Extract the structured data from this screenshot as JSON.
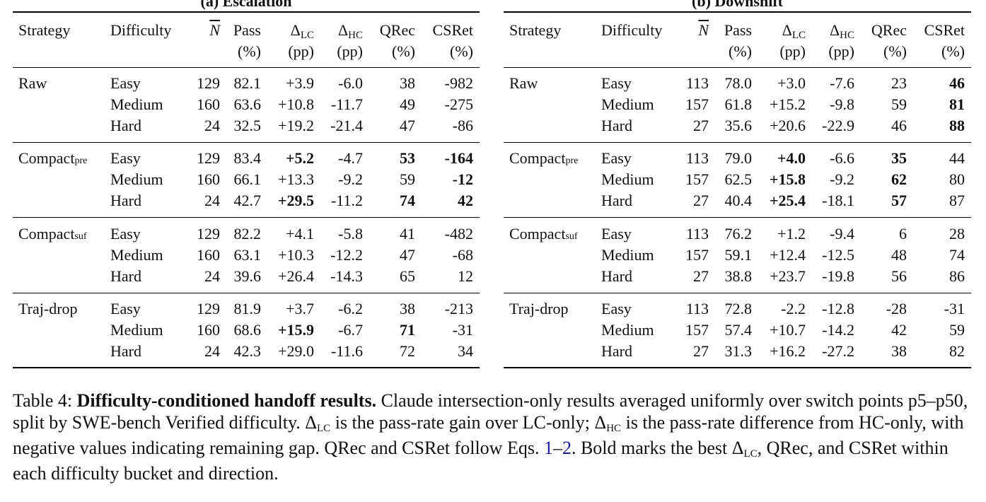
{
  "panels": [
    {
      "title": "(a) Escalation",
      "headers": {
        "strategy": "Strategy",
        "difficulty": "Difficulty",
        "n": "N",
        "pass": [
          "Pass",
          "(%)"
        ],
        "dlc": [
          "Δ",
          "LC",
          "(pp)"
        ],
        "dhc": [
          "Δ",
          "HC",
          "(pp)"
        ],
        "qrec": [
          "QRec",
          "(%)"
        ],
        "csret": [
          "CSRet",
          "(%)"
        ]
      },
      "groups": [
        {
          "strategy": "Raw",
          "sub": "",
          "rows": [
            {
              "d": "Easy",
              "n": "129",
              "pass": "82.1",
              "dlc": "+3.9",
              "dhc": "-6.0",
              "qrec": "38",
              "csret": "-982",
              "bold": []
            },
            {
              "d": "Medium",
              "n": "160",
              "pass": "63.6",
              "dlc": "+10.8",
              "dhc": "-11.7",
              "qrec": "49",
              "csret": "-275",
              "bold": []
            },
            {
              "d": "Hard",
              "n": "24",
              "pass": "32.5",
              "dlc": "+19.2",
              "dhc": "-21.4",
              "qrec": "47",
              "csret": "-86",
              "bold": []
            }
          ]
        },
        {
          "strategy": "Compact",
          "sub": "pre",
          "rows": [
            {
              "d": "Easy",
              "n": "129",
              "pass": "83.4",
              "dlc": "+5.2",
              "dhc": "-4.7",
              "qrec": "53",
              "csret": "-164",
              "bold": [
                "dlc",
                "qrec",
                "csret"
              ]
            },
            {
              "d": "Medium",
              "n": "160",
              "pass": "66.1",
              "dlc": "+13.3",
              "dhc": "-9.2",
              "qrec": "59",
              "csret": "-12",
              "bold": [
                "csret"
              ]
            },
            {
              "d": "Hard",
              "n": "24",
              "pass": "42.7",
              "dlc": "+29.5",
              "dhc": "-11.2",
              "qrec": "74",
              "csret": "42",
              "bold": [
                "dlc",
                "qrec",
                "csret"
              ]
            }
          ]
        },
        {
          "strategy": "Compact",
          "sub": "suf",
          "rows": [
            {
              "d": "Easy",
              "n": "129",
              "pass": "82.2",
              "dlc": "+4.1",
              "dhc": "-5.8",
              "qrec": "41",
              "csret": "-482",
              "bold": []
            },
            {
              "d": "Medium",
              "n": "160",
              "pass": "63.1",
              "dlc": "+10.3",
              "dhc": "-12.2",
              "qrec": "47",
              "csret": "-68",
              "bold": []
            },
            {
              "d": "Hard",
              "n": "24",
              "pass": "39.6",
              "dlc": "+26.4",
              "dhc": "-14.3",
              "qrec": "65",
              "csret": "12",
              "bold": []
            }
          ]
        },
        {
          "strategy": "Traj-drop",
          "sub": "",
          "rows": [
            {
              "d": "Easy",
              "n": "129",
              "pass": "81.9",
              "dlc": "+3.7",
              "dhc": "-6.2",
              "qrec": "38",
              "csret": "-213",
              "bold": []
            },
            {
              "d": "Medium",
              "n": "160",
              "pass": "68.6",
              "dlc": "+15.9",
              "dhc": "-6.7",
              "qrec": "71",
              "csret": "-31",
              "bold": [
                "dlc",
                "qrec"
              ]
            },
            {
              "d": "Hard",
              "n": "24",
              "pass": "42.3",
              "dlc": "+29.0",
              "dhc": "-11.6",
              "qrec": "72",
              "csret": "34",
              "bold": []
            }
          ]
        }
      ]
    },
    {
      "title": "(b) Downshift",
      "headers": {
        "strategy": "Strategy",
        "difficulty": "Difficulty",
        "n": "N",
        "pass": [
          "Pass",
          "(%)"
        ],
        "dlc": [
          "Δ",
          "LC",
          "(pp)"
        ],
        "dhc": [
          "Δ",
          "HC",
          "(pp)"
        ],
        "qrec": [
          "QRec",
          "(%)"
        ],
        "csret": [
          "CSRet",
          "(%)"
        ]
      },
      "groups": [
        {
          "strategy": "Raw",
          "sub": "",
          "rows": [
            {
              "d": "Easy",
              "n": "113",
              "pass": "78.0",
              "dlc": "+3.0",
              "dhc": "-7.6",
              "qrec": "23",
              "csret": "46",
              "bold": [
                "csret"
              ]
            },
            {
              "d": "Medium",
              "n": "157",
              "pass": "61.8",
              "dlc": "+15.2",
              "dhc": "-9.8",
              "qrec": "59",
              "csret": "81",
              "bold": [
                "csret"
              ]
            },
            {
              "d": "Hard",
              "n": "27",
              "pass": "35.6",
              "dlc": "+20.6",
              "dhc": "-22.9",
              "qrec": "46",
              "csret": "88",
              "bold": [
                "csret"
              ]
            }
          ]
        },
        {
          "strategy": "Compact",
          "sub": "pre",
          "rows": [
            {
              "d": "Easy",
              "n": "113",
              "pass": "79.0",
              "dlc": "+4.0",
              "dhc": "-6.6",
              "qrec": "35",
              "csret": "44",
              "bold": [
                "dlc",
                "qrec"
              ]
            },
            {
              "d": "Medium",
              "n": "157",
              "pass": "62.5",
              "dlc": "+15.8",
              "dhc": "-9.2",
              "qrec": "62",
              "csret": "80",
              "bold": [
                "dlc",
                "qrec"
              ]
            },
            {
              "d": "Hard",
              "n": "27",
              "pass": "40.4",
              "dlc": "+25.4",
              "dhc": "-18.1",
              "qrec": "57",
              "csret": "87",
              "bold": [
                "dlc",
                "qrec"
              ]
            }
          ]
        },
        {
          "strategy": "Compact",
          "sub": "suf",
          "rows": [
            {
              "d": "Easy",
              "n": "113",
              "pass": "76.2",
              "dlc": "+1.2",
              "dhc": "-9.4",
              "qrec": "6",
              "csret": "28",
              "bold": []
            },
            {
              "d": "Medium",
              "n": "157",
              "pass": "59.1",
              "dlc": "+12.4",
              "dhc": "-12.5",
              "qrec": "48",
              "csret": "74",
              "bold": []
            },
            {
              "d": "Hard",
              "n": "27",
              "pass": "38.8",
              "dlc": "+23.7",
              "dhc": "-19.8",
              "qrec": "56",
              "csret": "86",
              "bold": []
            }
          ]
        },
        {
          "strategy": "Traj-drop",
          "sub": "",
          "rows": [
            {
              "d": "Easy",
              "n": "113",
              "pass": "72.8",
              "dlc": "-2.2",
              "dhc": "-12.8",
              "qrec": "-28",
              "csret": "-31",
              "bold": []
            },
            {
              "d": "Medium",
              "n": "157",
              "pass": "57.4",
              "dlc": "+10.7",
              "dhc": "-14.2",
              "qrec": "42",
              "csret": "59",
              "bold": []
            },
            {
              "d": "Hard",
              "n": "27",
              "pass": "31.3",
              "dlc": "+16.2",
              "dhc": "-27.2",
              "qrec": "38",
              "csret": "82",
              "bold": []
            }
          ]
        }
      ]
    }
  ],
  "caption": {
    "label": "Table 4:",
    "headline": "Difficulty-conditioned handoff results.",
    "s1": "Claude intersection-only results averaged uniformly over switch points p5–p50, split by SWE-bench Verified difficulty.",
    "delta": "Δ",
    "lc": "LC",
    "hc": "HC",
    "s2": "is the pass-rate gain over LC-only;",
    "s3": "is the pass-rate difference from HC-only, with negative values indicating remaining gap. QRec and CSRet follow Eqs.",
    "eq1": "1",
    "dash": "–",
    "eq2": "2",
    "s4": ". Bold marks the best",
    "s5": ", QRec, and CSRet within each difficulty bucket and direction."
  }
}
